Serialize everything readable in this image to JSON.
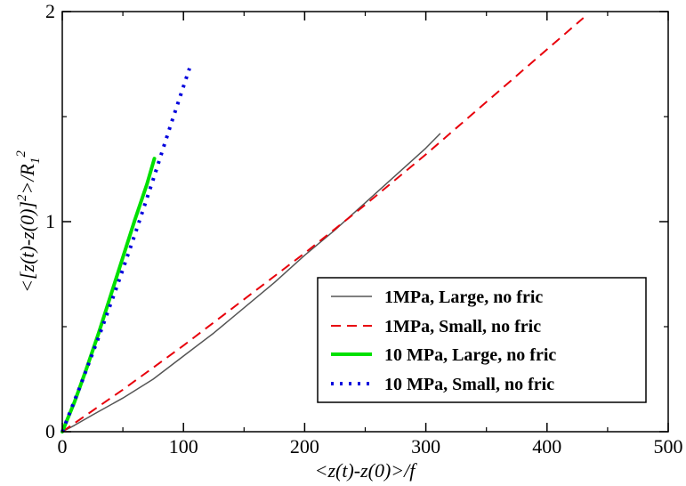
{
  "chart_data": {
    "type": "line",
    "title": "",
    "xlabel": "<z(t)-z(0)>/f",
    "ylabel_parts": [
      "<[z(t)-z(0)]",
      "2",
      ">/R",
      "1",
      "2"
    ],
    "xlim": [
      0,
      500
    ],
    "ylim": [
      0,
      2
    ],
    "x_ticks": [
      0,
      100,
      200,
      300,
      400,
      500
    ],
    "y_ticks": [
      0,
      1,
      2
    ],
    "x_tick_labels": [
      "0",
      "100",
      "200",
      "300",
      "400",
      "500"
    ],
    "y_tick_labels": [
      "0",
      "1",
      "2"
    ],
    "legend_position": "bottom-right",
    "series": [
      {
        "name": "1MPa, Large, no fric",
        "color": "#555555",
        "style": "solid",
        "x": [
          0,
          10,
          25,
          50,
          75,
          100,
          125,
          150,
          175,
          200,
          225,
          250,
          275,
          300,
          312
        ],
        "y": [
          0,
          0.03,
          0.08,
          0.16,
          0.25,
          0.36,
          0.47,
          0.59,
          0.71,
          0.84,
          0.96,
          1.09,
          1.22,
          1.35,
          1.42
        ]
      },
      {
        "name": "1MPa, Small, no fric",
        "color": "#e8000b",
        "style": "dashed",
        "x": [
          0,
          50,
          100,
          150,
          200,
          250,
          300,
          350,
          400,
          430
        ],
        "y": [
          0,
          0.2,
          0.41,
          0.63,
          0.85,
          1.08,
          1.32,
          1.57,
          1.82,
          1.97
        ]
      },
      {
        "name": "10 MPa, Large, no fric",
        "color": "#00e000",
        "style": "solid-thick",
        "x": [
          0,
          10,
          20,
          30,
          40,
          50,
          60,
          70,
          76
        ],
        "y": [
          0,
          0.14,
          0.3,
          0.47,
          0.65,
          0.83,
          1.01,
          1.18,
          1.3
        ]
      },
      {
        "name": "10 MPa, Small, no fric",
        "color": "#0000dd",
        "style": "dotted",
        "x": [
          0,
          15,
          30,
          45,
          60,
          75,
          90,
          105
        ],
        "y": [
          0,
          0.22,
          0.45,
          0.69,
          0.94,
          1.2,
          1.47,
          1.73
        ]
      }
    ]
  }
}
